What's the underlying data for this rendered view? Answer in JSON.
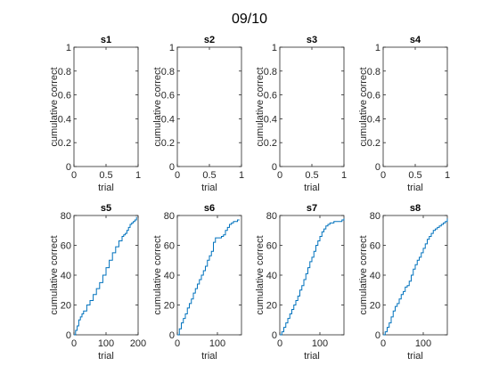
{
  "figure_title": "09/10",
  "chart_data": [
    {
      "type": "line",
      "title": "s1",
      "xlabel": "trial",
      "ylabel": "cumulative correct",
      "xlim": [
        0,
        1
      ],
      "ylim": [
        0,
        1
      ],
      "xticks": [
        "0",
        "0.5",
        "1"
      ],
      "yticks": [
        "0",
        "0.2",
        "0.4",
        "0.6",
        "0.8",
        "1"
      ],
      "series": []
    },
    {
      "type": "line",
      "title": "s2",
      "xlabel": "trial",
      "ylabel": "cumulative correct",
      "xlim": [
        0,
        1
      ],
      "ylim": [
        0,
        1
      ],
      "xticks": [
        "0",
        "0.5",
        "1"
      ],
      "yticks": [
        "0",
        "0.2",
        "0.4",
        "0.6",
        "0.8",
        "1"
      ],
      "series": []
    },
    {
      "type": "line",
      "title": "s3",
      "xlabel": "trial",
      "ylabel": "cumulative correct",
      "xlim": [
        0,
        1
      ],
      "ylim": [
        0,
        1
      ],
      "xticks": [
        "0",
        "0.5",
        "1"
      ],
      "yticks": [
        "0",
        "0.2",
        "0.4",
        "0.6",
        "0.8",
        "1"
      ],
      "series": []
    },
    {
      "type": "line",
      "title": "s4",
      "xlabel": "trial",
      "ylabel": "cumulative correct",
      "xlim": [
        0,
        1
      ],
      "ylim": [
        0,
        1
      ],
      "xticks": [
        "0",
        "0.5",
        "1"
      ],
      "yticks": [
        "0",
        "0.2",
        "0.4",
        "0.6",
        "0.8",
        "1"
      ],
      "series": []
    },
    {
      "type": "line",
      "title": "s5",
      "xlabel": "trial",
      "ylabel": "cumulative correct",
      "xlim": [
        0,
        200
      ],
      "ylim": [
        0,
        80
      ],
      "xticks": [
        "0",
        "100",
        "200"
      ],
      "yticks": [
        "0",
        "20",
        "40",
        "60",
        "80"
      ],
      "series": [
        {
          "color": "#0072bd",
          "x": [
            0,
            5,
            10,
            15,
            20,
            25,
            30,
            40,
            50,
            60,
            70,
            80,
            90,
            100,
            110,
            120,
            130,
            140,
            150,
            155,
            160,
            165,
            170,
            175,
            180,
            185,
            190,
            195
          ],
          "y": [
            0,
            3,
            6,
            10,
            12,
            14,
            16,
            20,
            23,
            27,
            31,
            35,
            40,
            45,
            50,
            55,
            59,
            63,
            66,
            67,
            68,
            70,
            72,
            74,
            75,
            76,
            77,
            79
          ]
        }
      ]
    },
    {
      "type": "line",
      "title": "s6",
      "xlabel": "trial",
      "ylabel": "cumulative correct",
      "xlim": [
        0,
        160
      ],
      "ylim": [
        0,
        80
      ],
      "xticks": [
        "0",
        "100"
      ],
      "yticks": [
        "0",
        "20",
        "40",
        "60",
        "80"
      ],
      "series": [
        {
          "color": "#0072bd",
          "x": [
            0,
            5,
            10,
            15,
            20,
            25,
            30,
            35,
            40,
            45,
            50,
            55,
            60,
            65,
            70,
            75,
            80,
            85,
            90,
            95,
            100,
            105,
            110,
            115,
            120,
            125,
            130,
            135,
            140,
            145,
            150,
            155
          ],
          "y": [
            0,
            4,
            8,
            11,
            14,
            18,
            21,
            24,
            28,
            31,
            34,
            37,
            40,
            43,
            46,
            50,
            53,
            56,
            62,
            65,
            65,
            65,
            66,
            67,
            70,
            72,
            74,
            75,
            76,
            76,
            77,
            77
          ]
        }
      ]
    },
    {
      "type": "line",
      "title": "s7",
      "xlabel": "trial",
      "ylabel": "cumulative correct",
      "xlim": [
        0,
        160
      ],
      "ylim": [
        0,
        80
      ],
      "xticks": [
        "0",
        "100"
      ],
      "yticks": [
        "0",
        "20",
        "40",
        "60",
        "80"
      ],
      "series": [
        {
          "color": "#0072bd",
          "x": [
            0,
            5,
            10,
            15,
            20,
            25,
            30,
            35,
            40,
            45,
            50,
            55,
            60,
            65,
            70,
            75,
            80,
            85,
            90,
            95,
            100,
            105,
            110,
            115,
            120,
            125,
            130,
            135,
            140,
            145,
            150,
            155,
            160
          ],
          "y": [
            0,
            2,
            5,
            8,
            11,
            14,
            17,
            20,
            23,
            26,
            30,
            33,
            37,
            41,
            45,
            49,
            52,
            56,
            60,
            63,
            66,
            69,
            71,
            73,
            74,
            75,
            75,
            76,
            76,
            76,
            76,
            77,
            78
          ]
        }
      ]
    },
    {
      "type": "line",
      "title": "s8",
      "xlabel": "trial",
      "ylabel": "cumulative correct",
      "xlim": [
        0,
        160
      ],
      "ylim": [
        0,
        80
      ],
      "xticks": [
        "0",
        "100"
      ],
      "yticks": [
        "0",
        "20",
        "40",
        "60",
        "80"
      ],
      "series": [
        {
          "color": "#0072bd",
          "x": [
            0,
            5,
            10,
            15,
            20,
            25,
            30,
            35,
            40,
            45,
            50,
            55,
            60,
            65,
            70,
            75,
            80,
            85,
            90,
            95,
            100,
            105,
            110,
            115,
            120,
            125,
            130,
            135,
            140,
            145,
            150,
            155,
            160
          ],
          "y": [
            0,
            2,
            5,
            8,
            12,
            16,
            19,
            21,
            24,
            27,
            29,
            32,
            33,
            36,
            40,
            44,
            47,
            50,
            52,
            55,
            58,
            61,
            64,
            66,
            68,
            70,
            71,
            72,
            73,
            74,
            75,
            76,
            78
          ]
        }
      ]
    }
  ]
}
